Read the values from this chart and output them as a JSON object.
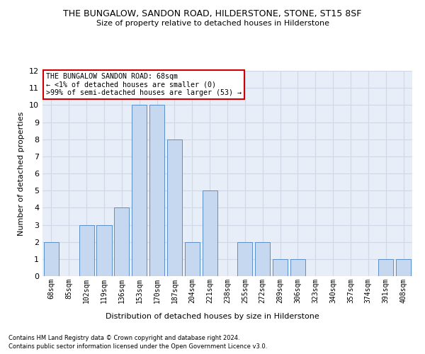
{
  "title": "THE BUNGALOW, SANDON ROAD, HILDERSTONE, STONE, ST15 8SF",
  "subtitle": "Size of property relative to detached houses in Hilderstone",
  "xlabel": "Distribution of detached houses by size in Hilderstone",
  "ylabel": "Number of detached properties",
  "categories": [
    "68sqm",
    "85sqm",
    "102sqm",
    "119sqm",
    "136sqm",
    "153sqm",
    "170sqm",
    "187sqm",
    "204sqm",
    "221sqm",
    "238sqm",
    "255sqm",
    "272sqm",
    "289sqm",
    "306sqm",
    "323sqm",
    "340sqm",
    "357sqm",
    "374sqm",
    "391sqm",
    "408sqm"
  ],
  "values": [
    2,
    0,
    3,
    3,
    4,
    10,
    10,
    8,
    2,
    5,
    0,
    2,
    2,
    1,
    1,
    0,
    0,
    0,
    0,
    1,
    1
  ],
  "bar_color": "#c5d8f0",
  "bar_edge_color": "#5b8fc9",
  "grid_color": "#d0d8e8",
  "background_color": "#e8eef8",
  "ylim": [
    0,
    12
  ],
  "yticks": [
    0,
    1,
    2,
    3,
    4,
    5,
    6,
    7,
    8,
    9,
    10,
    11,
    12
  ],
  "annotation_box_text": "THE BUNGALOW SANDON ROAD: 68sqm\n← <1% of detached houses are smaller (0)\n>99% of semi-detached houses are larger (53) →",
  "annotation_box_color": "#ffffff",
  "annotation_box_edge_color": "#cc0000",
  "footer1": "Contains HM Land Registry data © Crown copyright and database right 2024.",
  "footer2": "Contains public sector information licensed under the Open Government Licence v3.0."
}
